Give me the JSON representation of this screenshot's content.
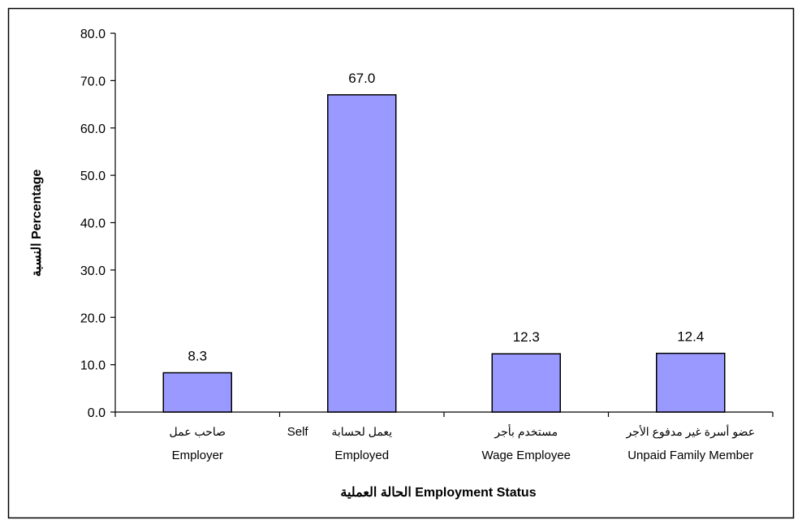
{
  "chart_data": {
    "type": "bar",
    "categories": [
      {
        "ar": "صاحب عمل",
        "en": "Employer"
      },
      {
        "ar": "يعمل لحسابة",
        "en": "Employed",
        "en_extra": "Self"
      },
      {
        "ar": "مستخدم بأجر",
        "en": "Wage Employee"
      },
      {
        "ar": "عضو أسرة غير مدفوع الأجر",
        "en": "Unpaid Family Member"
      }
    ],
    "values": [
      8.3,
      67.0,
      12.3,
      12.4
    ],
    "data_labels": [
      "8.3",
      "67.0",
      "12.3",
      "12.4"
    ],
    "ylim": [
      0,
      80
    ],
    "yticks": [
      "0.0",
      "10.0",
      "20.0",
      "30.0",
      "40.0",
      "50.0",
      "60.0",
      "70.0",
      "80.0"
    ],
    "ylabel": "النسبة Percentage",
    "xlabel": "الحالة العملية Employment Status",
    "grid": false,
    "bar_color": "#9999ff",
    "bar_stroke": "#000000"
  }
}
